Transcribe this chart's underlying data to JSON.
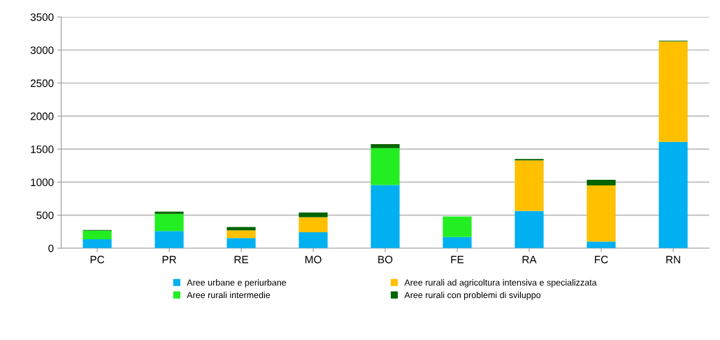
{
  "chart_data": {
    "type": "bar",
    "stacked": true,
    "categories": [
      "PC",
      "PR",
      "RE",
      "MO",
      "BO",
      "FE",
      "RA",
      "FC",
      "RN"
    ],
    "series": [
      {
        "name": "Aree urbane e periurbane",
        "color": "#00b0f0",
        "values": [
          135,
          260,
          155,
          240,
          955,
          170,
          565,
          100,
          1610
        ]
      },
      {
        "name": "Aree rurali intermedie",
        "color": "#22ee22",
        "values": [
          130,
          260,
          0,
          0,
          560,
          310,
          0,
          0,
          0
        ]
      },
      {
        "name": "Aree rurali ad agricoltura intensiva e specializzata",
        "color": "#ffc000",
        "values": [
          0,
          0,
          115,
          230,
          0,
          0,
          765,
          850,
          1520
        ]
      },
      {
        "name": "Aree rurali con problemi di sviluppo",
        "color": "#006400",
        "values": [
          10,
          35,
          50,
          70,
          60,
          0,
          20,
          85,
          10
        ]
      }
    ],
    "ylim": [
      0,
      3500
    ],
    "yticks": [
      0,
      500,
      1000,
      1500,
      2000,
      2500,
      3000,
      3500
    ],
    "grid": "y",
    "legend": "bottom"
  }
}
